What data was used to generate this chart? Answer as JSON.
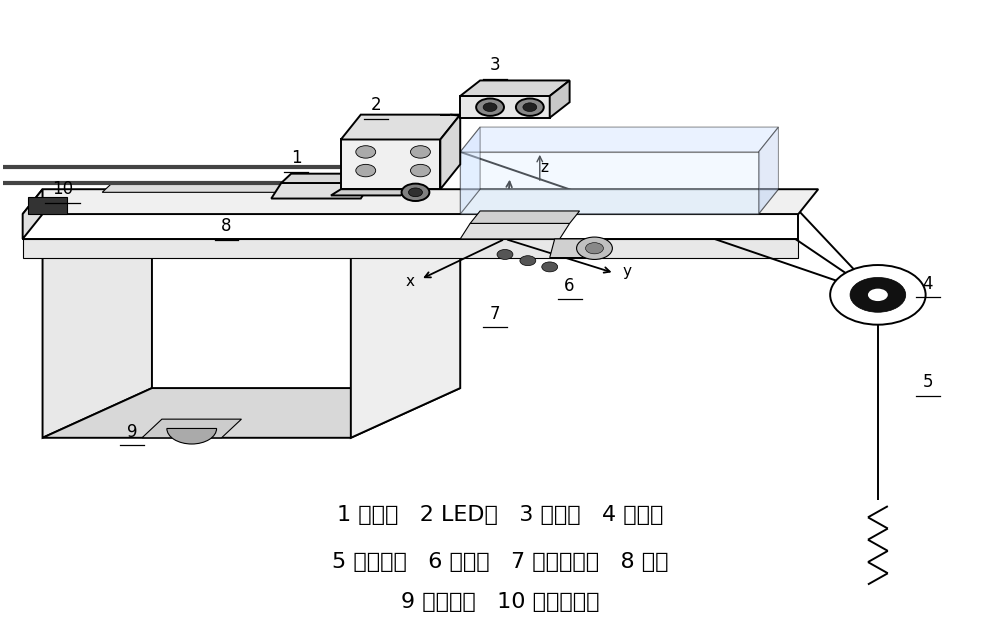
{
  "figure_width": 10.0,
  "figure_height": 6.27,
  "dpi": 100,
  "bg_color": "#ffffff",
  "line_color": "#000000",
  "lw_main": 1.4,
  "lw_thin": 0.8,
  "caption_fontsize": 16,
  "caption_line1": "1 右相机   2 LED灯   3 左相机   4 固定点",
  "caption_line2": "5 反光标识   6 同名点   7 光电传感器   8 横梁",
  "caption_line3": "9 轨检小车   10 倾角传感器"
}
